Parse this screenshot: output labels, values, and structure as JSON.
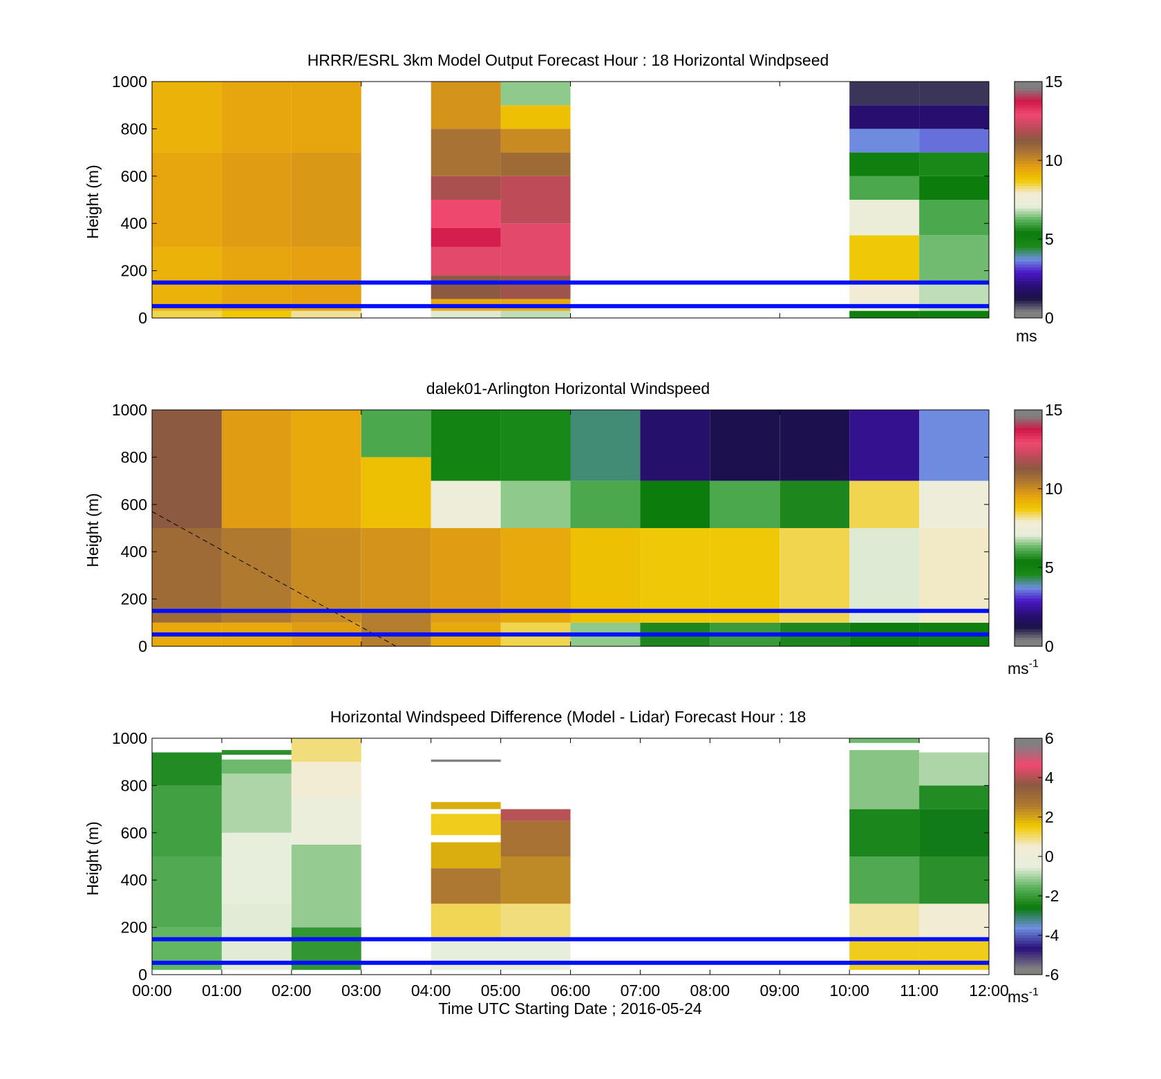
{
  "figure": {
    "xlabel": "Time UTC  Starting Date ; 2016-05-24",
    "xticks": [
      "00:00",
      "01:00",
      "02:00",
      "03:00",
      "04:00",
      "05:00",
      "06:00",
      "07:00",
      "08:00",
      "09:00",
      "10:00",
      "11:00",
      "12:00"
    ]
  },
  "colors": {
    "guide_lines": "#0010ff",
    "windspeed_scale": [
      "#808080",
      "#1a1147",
      "#2a0f7a",
      "#4a17c8",
      "#6f8fe0",
      "#1a8a1a",
      "#0a7a0a",
      "#5db35d",
      "#e8eedc",
      "#f2ecd5",
      "#f0c800",
      "#e6a010",
      "#b07a30",
      "#8a5a40",
      "#c04a5a",
      "#f04870",
      "#d01848",
      "#808080"
    ],
    "difference_scale": [
      "#808080",
      "#2a0f7a",
      "#6f8fe0",
      "#0a7a0a",
      "#5db35d",
      "#e8eedc",
      "#f2ecd5",
      "#f0c800",
      "#b07a30",
      "#8a5a40",
      "#f04870",
      "#808080"
    ]
  },
  "chart_data": [
    {
      "type": "heatmap",
      "title": "HRRR/ESRL 3km Model Output   Forecast Hour : 18 Horizontal Windpseed",
      "xlabel": "",
      "ylabel": "Height (m)",
      "x_range": [
        "00:00",
        "12:00"
      ],
      "ylim": [
        0,
        1000
      ],
      "yticks": [
        "0",
        "200",
        "400",
        "600",
        "800",
        "1000"
      ],
      "colorbar": {
        "range": [
          0,
          15
        ],
        "ticks": [
          "0",
          "5",
          "10",
          "15"
        ],
        "unit": "ms"
      },
      "guide_lines_m": [
        50,
        150
      ],
      "columns": [
        {
          "start": "00:00",
          "end": "01:00",
          "profile": [
            [
              0,
              30,
              8.5
            ],
            [
              30,
              300,
              9.3
            ],
            [
              300,
              700,
              9.6
            ],
            [
              700,
              1000,
              9.3
            ]
          ]
        },
        {
          "start": "01:00",
          "end": "02:00",
          "profile": [
            [
              0,
              30,
              8.8
            ],
            [
              30,
              300,
              9.6
            ],
            [
              300,
              700,
              9.8
            ],
            [
              700,
              1000,
              9.6
            ]
          ]
        },
        {
          "start": "02:00",
          "end": "03:00",
          "profile": [
            [
              0,
              30,
              8.2
            ],
            [
              30,
              300,
              9.7
            ],
            [
              300,
              700,
              9.9
            ],
            [
              700,
              1000,
              9.6
            ]
          ]
        },
        {
          "start": "04:00",
          "end": "05:00",
          "profile": [
            [
              0,
              30,
              7.0
            ],
            [
              30,
              80,
              9.5
            ],
            [
              80,
              180,
              11.5
            ],
            [
              180,
              300,
              13.0
            ],
            [
              300,
              380,
              14.0
            ],
            [
              380,
              500,
              13.2
            ],
            [
              500,
              600,
              12.0
            ],
            [
              600,
              800,
              10.8
            ],
            [
              800,
              1000,
              10.0
            ]
          ]
        },
        {
          "start": "05:00",
          "end": "06:00",
          "profile": [
            [
              0,
              30,
              6.8
            ],
            [
              30,
              80,
              9.5
            ],
            [
              80,
              180,
              11.8
            ],
            [
              180,
              400,
              13.0
            ],
            [
              400,
              600,
              12.3
            ],
            [
              600,
              700,
              11.0
            ],
            [
              700,
              800,
              10.2
            ],
            [
              800,
              900,
              9.0
            ],
            [
              900,
              1000,
              6.5
            ]
          ]
        },
        {
          "start": "10:00",
          "end": "11:00",
          "profile": [
            [
              0,
              30,
              5.0
            ],
            [
              30,
              150,
              7.8
            ],
            [
              150,
              350,
              8.8
            ],
            [
              350,
              500,
              7.4
            ],
            [
              500,
              600,
              6.0
            ],
            [
              600,
              700,
              5.0
            ],
            [
              700,
              800,
              3.5
            ],
            [
              800,
              900,
              1.6
            ],
            [
              900,
              1000,
              0.6
            ]
          ]
        },
        {
          "start": "11:00",
          "end": "12:00",
          "profile": [
            [
              0,
              30,
              5.0
            ],
            [
              30,
              150,
              6.8
            ],
            [
              150,
              350,
              6.3
            ],
            [
              350,
              500,
              6.0
            ],
            [
              500,
              600,
              5.2
            ],
            [
              600,
              700,
              4.5
            ],
            [
              700,
              800,
              3.3
            ],
            [
              800,
              900,
              1.6
            ],
            [
              900,
              1000,
              0.6
            ]
          ]
        }
      ]
    },
    {
      "type": "heatmap",
      "title": "dalek01-Arlington  Horizontal Windspeed",
      "xlabel": "",
      "ylabel": "Height (m)",
      "x_range": [
        "00:00",
        "12:00"
      ],
      "ylim": [
        0,
        1000
      ],
      "yticks": [
        "0",
        "200",
        "400",
        "600",
        "800",
        "1000"
      ],
      "colorbar": {
        "range": [
          0,
          15
        ],
        "ticks": [
          "0",
          "5",
          "10",
          "15"
        ],
        "unit": "ms",
        "unit_sup": "-1"
      },
      "guide_lines_m": [
        50,
        150
      ],
      "reference_line": {
        "x": [
          "00:00",
          "03:30"
        ],
        "y": [
          570,
          0
        ]
      },
      "columns": [
        {
          "start": "00:00",
          "end": "01:00",
          "profile": [
            [
              0,
              100,
              9.5
            ],
            [
              100,
              500,
              11.0
            ],
            [
              500,
              1000,
              11.5
            ]
          ]
        },
        {
          "start": "01:00",
          "end": "02:00",
          "profile": [
            [
              0,
              100,
              9.5
            ],
            [
              100,
              500,
              10.6
            ],
            [
              500,
              1000,
              9.8
            ]
          ]
        },
        {
          "start": "02:00",
          "end": "03:00",
          "profile": [
            [
              0,
              100,
              9.8
            ],
            [
              100,
              500,
              10.2
            ],
            [
              500,
              1000,
              9.5
            ]
          ]
        },
        {
          "start": "03:00",
          "end": "04:00",
          "profile": [
            [
              0,
              150,
              10.5
            ],
            [
              150,
              500,
              10.0
            ],
            [
              500,
              800,
              9.0
            ],
            [
              800,
              1000,
              6.0
            ]
          ]
        },
        {
          "start": "04:00",
          "end": "05:00",
          "profile": [
            [
              0,
              100,
              9.5
            ],
            [
              100,
              500,
              9.8
            ],
            [
              500,
              700,
              7.5
            ],
            [
              700,
              1000,
              4.8
            ]
          ]
        },
        {
          "start": "05:00",
          "end": "06:00",
          "profile": [
            [
              0,
              100,
              8.5
            ],
            [
              100,
              500,
              9.5
            ],
            [
              500,
              700,
              6.5
            ],
            [
              700,
              1000,
              4.5
            ]
          ]
        },
        {
          "start": "06:00",
          "end": "07:00",
          "profile": [
            [
              0,
              100,
              6.5
            ],
            [
              100,
              500,
              9.0
            ],
            [
              500,
              700,
              6.0
            ],
            [
              700,
              1000,
              4.0
            ]
          ]
        },
        {
          "start": "07:00",
          "end": "08:00",
          "profile": [
            [
              0,
              100,
              5.5
            ],
            [
              100,
              500,
              8.8
            ],
            [
              500,
              700,
              5.2
            ],
            [
              700,
              1000,
              1.5
            ]
          ]
        },
        {
          "start": "08:00",
          "end": "09:00",
          "profile": [
            [
              0,
              100,
              5.8
            ],
            [
              100,
              500,
              8.8
            ],
            [
              500,
              700,
              6.0
            ],
            [
              700,
              1000,
              1.0
            ]
          ]
        },
        {
          "start": "09:00",
          "end": "10:00",
          "profile": [
            [
              0,
              100,
              5.5
            ],
            [
              100,
              500,
              8.5
            ],
            [
              500,
              700,
              5.5
            ],
            [
              700,
              1000,
              1.0
            ]
          ]
        },
        {
          "start": "10:00",
          "end": "11:00",
          "profile": [
            [
              0,
              100,
              5.2
            ],
            [
              100,
              500,
              7.0
            ],
            [
              500,
              700,
              8.5
            ],
            [
              700,
              1000,
              2.0
            ]
          ]
        },
        {
          "start": "11:00",
          "end": "12:00",
          "profile": [
            [
              0,
              100,
              5.0
            ],
            [
              100,
              500,
              8.0
            ],
            [
              500,
              700,
              7.5
            ],
            [
              700,
              1000,
              3.5
            ]
          ]
        }
      ]
    },
    {
      "type": "heatmap",
      "title": "Horizontal Windspeed Difference (Model - Lidar) Forecast Hour : 18",
      "xlabel": "Time UTC  Starting Date ; 2016-05-24",
      "ylabel": "Height (m)",
      "x_range": [
        "00:00",
        "12:00"
      ],
      "ylim": [
        0,
        1000
      ],
      "yticks": [
        "0",
        "200",
        "400",
        "600",
        "800",
        "1000"
      ],
      "colorbar": {
        "range": [
          -6,
          6
        ],
        "ticks": [
          "-6",
          "-4",
          "-2",
          "0",
          "2",
          "4",
          "6"
        ],
        "unit": "ms",
        "unit_sup": "-1"
      },
      "guide_lines_m": [
        50,
        150
      ],
      "columns": [
        {
          "start": "00:00",
          "end": "01:00",
          "profile": [
            [
              20,
              200,
              -1.6
            ],
            [
              200,
              500,
              -1.8
            ],
            [
              500,
              800,
              -2.0
            ],
            [
              800,
              940,
              -2.4
            ]
          ]
        },
        {
          "start": "01:00",
          "end": "02:00",
          "profile": [
            [
              20,
              300,
              -0.6
            ],
            [
              300,
              600,
              -0.5
            ],
            [
              600,
              850,
              -1.0
            ],
            [
              850,
              910,
              -1.5
            ],
            [
              930,
              950,
              -2.3
            ]
          ]
        },
        {
          "start": "02:00",
          "end": "03:00",
          "profile": [
            [
              20,
              200,
              -2.2
            ],
            [
              200,
              550,
              -1.2
            ],
            [
              550,
              750,
              -0.3
            ],
            [
              750,
              900,
              0.5
            ],
            [
              900,
              1000,
              1.0
            ]
          ]
        },
        {
          "start": "04:00",
          "end": "05:00",
          "profile": [
            [
              20,
              150,
              -0.5
            ],
            [
              150,
              300,
              1.2
            ],
            [
              300,
              450,
              2.8
            ],
            [
              450,
              560,
              2.0
            ],
            [
              590,
              680,
              1.5
            ],
            [
              700,
              730,
              2.0
            ],
            [
              900,
              910,
              -6.0
            ]
          ]
        },
        {
          "start": "05:00",
          "end": "06:00",
          "profile": [
            [
              20,
              150,
              -0.5
            ],
            [
              150,
              300,
              1.0
            ],
            [
              300,
              500,
              2.5
            ],
            [
              500,
              650,
              3.0
            ],
            [
              650,
              700,
              4.3
            ]
          ]
        },
        {
          "start": "10:00",
          "end": "11:00",
          "profile": [
            [
              20,
              150,
              1.5
            ],
            [
              150,
              300,
              0.8
            ],
            [
              300,
              500,
              -1.8
            ],
            [
              500,
              700,
              -2.5
            ],
            [
              700,
              950,
              -1.3
            ],
            [
              980,
              1000,
              -1.5
            ]
          ]
        },
        {
          "start": "11:00",
          "end": "12:00",
          "profile": [
            [
              20,
              150,
              1.5
            ],
            [
              150,
              300,
              0.5
            ],
            [
              300,
              500,
              -2.3
            ],
            [
              500,
              700,
              -2.8
            ],
            [
              700,
              800,
              -2.4
            ],
            [
              800,
              940,
              -1.0
            ]
          ]
        }
      ]
    }
  ]
}
